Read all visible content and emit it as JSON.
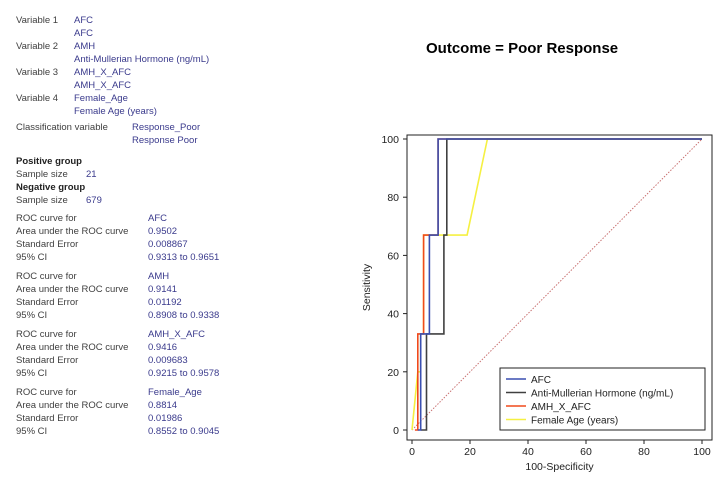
{
  "left_panel": {
    "variables": [
      {
        "label": "Variable 1",
        "name": "AFC",
        "desc": "AFC"
      },
      {
        "label": "Variable 2",
        "name": "AMH",
        "desc": "Anti-Mullerian Hormone (ng/mL)"
      },
      {
        "label": "Variable 3",
        "name": "AMH_X_AFC",
        "desc": "AMH_X_AFC"
      },
      {
        "label": "Variable 4",
        "name": "Female_Age",
        "desc": "Female Age (years)"
      }
    ],
    "classification": {
      "label": "Classification variable",
      "name": "Response_Poor",
      "desc": "Response Poor"
    },
    "positive_group": {
      "title": "Positive group",
      "size_label": "Sample size",
      "size": "21"
    },
    "negative_group": {
      "title": "Negative group",
      "size_label": "Sample size",
      "size": "679"
    },
    "roc_blocks": [
      {
        "curve_label": "ROC curve for",
        "curve": "AFC",
        "auc_label": "Area under the ROC curve",
        "auc": "0.9502",
        "se_label": "Standard Error",
        "se": "0.008867",
        "ci_label": "95% CI",
        "ci": "0.9313 to 0.9651"
      },
      {
        "curve_label": "ROC curve for",
        "curve": "AMH",
        "auc_label": "Area under the ROC curve",
        "auc": "0.9141",
        "se_label": "Standard Error",
        "se": "0.01192",
        "ci_label": "95% CI",
        "ci": "0.8908 to 0.9338"
      },
      {
        "curve_label": "ROC curve for",
        "curve": "AMH_X_AFC",
        "auc_label": "Area under the ROC curve",
        "auc": "0.9416",
        "se_label": "Standard Error",
        "se": "0.009683",
        "ci_label": "95% CI",
        "ci": "0.9215 to 0.9578"
      },
      {
        "curve_label": "ROC curve for",
        "curve": "Female_Age",
        "auc_label": "Area under the ROC curve",
        "auc": "0.8814",
        "se_label": "Standard Error",
        "se": "0.01986",
        "ci_label": "95% CI",
        "ci": "0.8552 to 0.9045"
      }
    ]
  },
  "outcome_title": "Outcome = Poor Response",
  "chart_data": {
    "type": "line",
    "xlabel": "100-Specificity",
    "ylabel": "Sensitivity",
    "xlim": [
      0,
      100
    ],
    "ylim": [
      0,
      100
    ],
    "xticks": [
      "0",
      "20",
      "40",
      "60",
      "80",
      "100"
    ],
    "yticks": [
      "0",
      "20",
      "40",
      "60",
      "80",
      "100"
    ],
    "grid": false,
    "legend_position": "bottom-right",
    "reference_line": {
      "x": [
        0,
        100
      ],
      "y": [
        0,
        100
      ],
      "color": "#c87070"
    },
    "series": [
      {
        "name": "AFC",
        "color": "#3a4fb0",
        "x": [
          2,
          3,
          3,
          6,
          6,
          7,
          7,
          9,
          9,
          10,
          10,
          100
        ],
        "y": [
          0,
          0,
          33,
          33,
          67,
          67,
          67,
          67,
          100,
          100,
          100,
          100
        ]
      },
      {
        "name": "Anti-Mullerian Hormone (ng/mL)",
        "color": "#404040",
        "x": [
          3,
          5,
          5,
          11,
          11,
          12,
          12,
          100
        ],
        "y": [
          0,
          0,
          33,
          33,
          67,
          67,
          100,
          100
        ]
      },
      {
        "name": "AMH_X_AFC",
        "color": "#f04a1c",
        "x": [
          1,
          2,
          2,
          4,
          4,
          8,
          8,
          9,
          9,
          26,
          100
        ],
        "y": [
          0,
          0,
          33,
          33,
          67,
          67,
          67,
          67,
          100,
          100,
          100
        ]
      },
      {
        "name": "Female Age (years)",
        "color": "#f5f042",
        "x": [
          0,
          0,
          2,
          3,
          3,
          4,
          4,
          19,
          19,
          26,
          26,
          100
        ],
        "y": [
          0,
          0,
          20,
          20,
          33,
          33,
          67,
          67,
          67,
          100,
          100,
          100
        ]
      }
    ]
  }
}
